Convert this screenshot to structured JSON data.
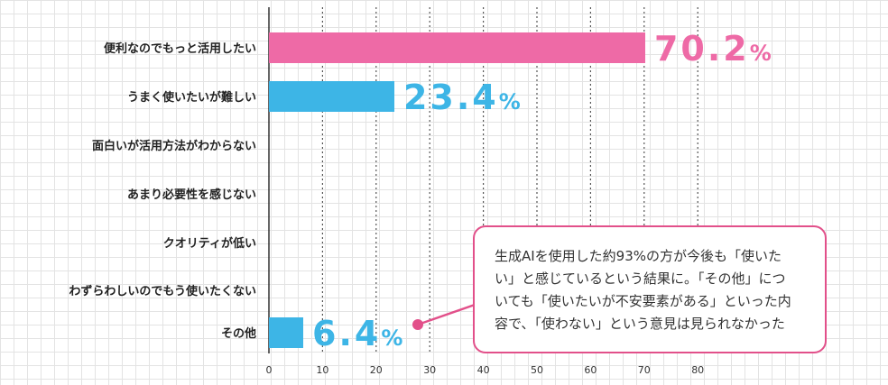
{
  "chart_data": {
    "type": "bar",
    "orientation": "horizontal",
    "categories": [
      "便利なのでもっと活用したい",
      "うまく使いたいが難しい",
      "面白いが活用方法がわからない",
      "あまり必要性を感じない",
      "クオリティが低い",
      "わずらわしいのでもう使いたくない",
      "その他"
    ],
    "values": [
      70.2,
      23.4,
      0,
      0,
      0,
      0,
      6.4
    ],
    "data_labels": [
      "70.2%",
      "23.4%",
      "",
      "",
      "",
      "",
      "6.4%"
    ],
    "bar_colors": [
      "#ee6aa6",
      "#3db5e6",
      "#3db5e6",
      "#3db5e6",
      "#3db5e6",
      "#3db5e6",
      "#3db5e6"
    ],
    "label_colors": [
      "#ee6aa6",
      "#3db5e6",
      "#3db5e6",
      "#3db5e6",
      "#3db5e6",
      "#3db5e6",
      "#3db5e6"
    ],
    "xticks": [
      0,
      10,
      20,
      30,
      40,
      50,
      60,
      70,
      80
    ],
    "xlim": [
      0,
      80
    ],
    "grid": "vertical dotted lines"
  },
  "callout": {
    "lines": [
      "生成AIを使用した約93%の方が今後も「使いた",
      "い」と感じているという結果に。「その他」につ",
      "いても「使いたいが不安要素がある」といった内",
      "容で、「使わない」という意見は見られなかった"
    ],
    "border_color": "#e2508a"
  }
}
